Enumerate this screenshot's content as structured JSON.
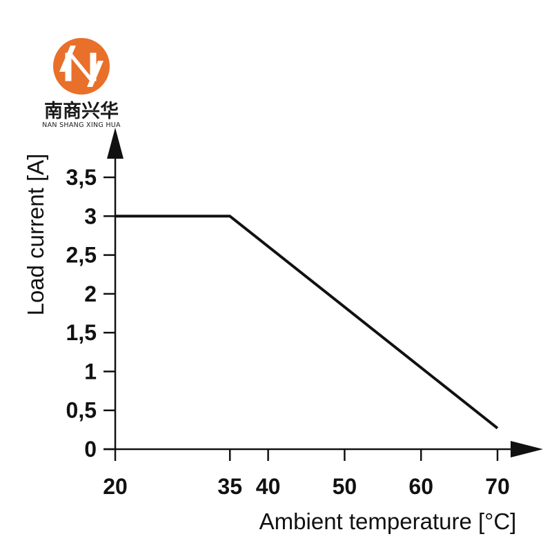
{
  "logo": {
    "name_cn": "南商兴华",
    "name_en": "NAN SHANG XING HUA",
    "color": "#E8702A"
  },
  "chart_data": {
    "type": "line",
    "title": "",
    "xlabel": "Ambient temperature [°C]",
    "ylabel": "Load current [A]",
    "xlim": [
      20,
      70
    ],
    "ylim": [
      0,
      3.5
    ],
    "x_ticks": [
      20,
      35,
      40,
      50,
      60,
      70
    ],
    "x_tick_labels": [
      "20",
      "35",
      "40",
      "50",
      "60",
      "70"
    ],
    "y_ticks": [
      0,
      0.5,
      1,
      1.5,
      2,
      2.5,
      3,
      3.5
    ],
    "y_tick_labels": [
      "0",
      "0,5",
      "1",
      "1,5",
      "2",
      "2,5",
      "3",
      "3,5"
    ],
    "grid": false,
    "series": [
      {
        "x": [
          20,
          35,
          70
        ],
        "y": [
          3,
          3,
          0.27
        ],
        "color": "#111111"
      }
    ]
  }
}
